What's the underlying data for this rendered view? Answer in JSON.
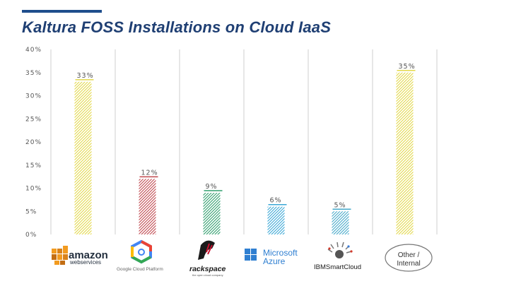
{
  "title": "Kaltura FOSS Installations on Cloud IaaS",
  "colors": {
    "title": "#1f3f73",
    "accent_rule": "#1f4e8c",
    "grid": "#cfcfcf"
  },
  "chart_data": {
    "type": "bar",
    "title": "Kaltura FOSS Installations on Cloud IaaS",
    "xlabel": "",
    "ylabel": "",
    "ylim": [
      0,
      40
    ],
    "yticks": [
      "0%",
      "5%",
      "10%",
      "15%",
      "20%",
      "25%",
      "30%",
      "35%",
      "40%"
    ],
    "categories": [
      "Amazon Web Services",
      "Google Cloud Platform",
      "Rackspace",
      "Microsoft Azure",
      "IBM SmartCloud",
      "Other / Internal"
    ],
    "values": [
      33,
      12,
      9,
      6,
      5,
      35
    ],
    "data_labels": [
      "33%",
      "12%",
      "9%",
      "6%",
      "5%",
      "35%"
    ],
    "bar_colors": [
      "#e3d84a",
      "#c0474d",
      "#2e9e6c",
      "#3aa7d6",
      "#45a9c9",
      "#e3d84a"
    ],
    "pattern": "diagonal-hatch",
    "grid": "vertical-separators"
  },
  "logos": {
    "amazon": {
      "line1": "amazon",
      "line2": "webservices"
    },
    "google": {
      "text": "Google Cloud Platform"
    },
    "rackspace": {
      "text": "rackspace",
      "tagline": "the open cloud company"
    },
    "microsoft": {
      "line1": "Microsoft",
      "line2": "Azure"
    },
    "ibm": {
      "text": "IBMSmartCloud"
    },
    "other": {
      "line1": "Other /",
      "line2": "Internal"
    }
  }
}
